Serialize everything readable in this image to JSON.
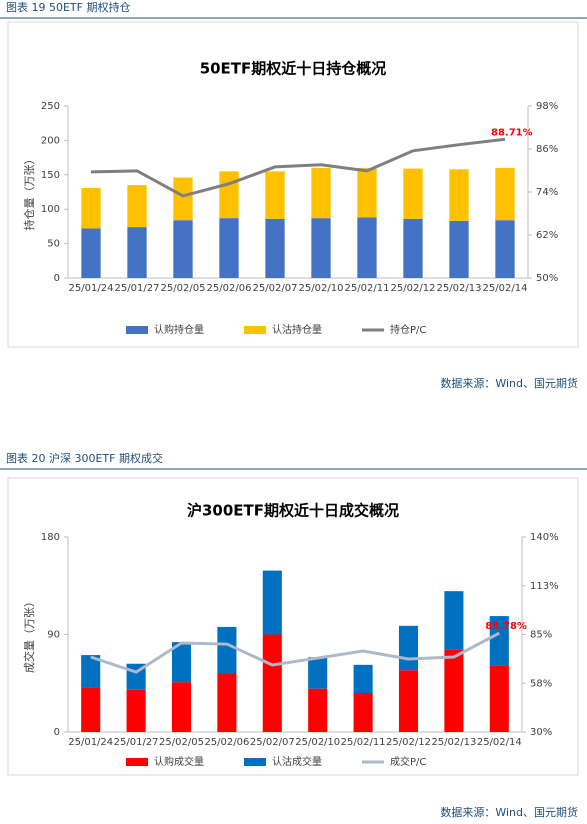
{
  "chart_data": [
    {
      "type": "bar",
      "caption": "图表 19  50ETF 期权持仓",
      "title": "50ETF期权近十日持仓概况",
      "y_label": "持仓量（万张）",
      "source": "数据来源：Wind、国元期货",
      "categories": [
        "25/01/24",
        "25/01/27",
        "25/02/05",
        "25/02/06",
        "25/02/07",
        "25/02/10",
        "25/02/11",
        "25/02/12",
        "25/02/13",
        "25/02/14"
      ],
      "series": [
        {
          "name": "认购持仓量",
          "color": "#4472c4",
          "values": [
            72,
            74,
            84,
            87,
            86,
            87,
            88,
            86,
            83,
            84
          ]
        },
        {
          "name": "认沽持仓量",
          "color": "#ffc000",
          "values": [
            59,
            61,
            62,
            68,
            69,
            73,
            72,
            73,
            75,
            76
          ]
        },
        {
          "name": "持仓P/C",
          "color": "#7f7f7f",
          "axis": "y2",
          "values": [
            79.6,
            79.9,
            72.9,
            76.3,
            81.0,
            81.6,
            79.9,
            85.5,
            87.2,
            88.71
          ],
          "value_labels": [
            null,
            null,
            null,
            null,
            null,
            null,
            null,
            null,
            null,
            "88.71%"
          ]
        }
      ],
      "ylim": [
        0,
        250
      ],
      "yticks": [
        0,
        50,
        100,
        150,
        200,
        250
      ],
      "y2lim": [
        50,
        98
      ],
      "y2ticks": [
        {
          "value": 50,
          "label": "50%"
        },
        {
          "value": 62,
          "label": "62%"
        },
        {
          "value": 74,
          "label": "74%"
        },
        {
          "value": 86,
          "label": "86%"
        },
        {
          "value": 98,
          "label": "98%"
        }
      ],
      "stacked": true,
      "grid": false
    },
    {
      "type": "bar",
      "caption": "图表 20  沪深 300ETF 期权成交",
      "title": "沪300ETF期权近十日成交概况",
      "y_label": "成交量（万张）",
      "source": "数据来源：Wind、国元期货",
      "categories": [
        "25/01/24",
        "25/01/27",
        "25/02/05",
        "25/02/06",
        "25/02/07",
        "25/02/10",
        "25/02/11",
        "25/02/12",
        "25/02/13",
        "25/02/14"
      ],
      "series": [
        {
          "name": "认购成交量",
          "color": "#ff0000",
          "values": [
            41,
            39,
            46,
            54,
            90,
            40,
            36,
            57,
            76,
            61
          ]
        },
        {
          "name": "认沽成交量",
          "color": "#0070c0",
          "values": [
            30,
            24,
            37,
            43,
            59,
            29,
            26,
            41,
            54,
            46
          ]
        },
        {
          "name": "成交P/C",
          "color": "#adb9ca",
          "axis": "y2",
          "values": [
            72.3,
            63.8,
            80.2,
            79.6,
            67.8,
            71.7,
            75.7,
            71.2,
            72.3,
            85.78
          ],
          "value_labels": [
            null,
            null,
            null,
            null,
            null,
            null,
            null,
            null,
            null,
            "85.78%"
          ]
        }
      ],
      "ylim": [
        0,
        180
      ],
      "yticks": [
        0,
        90,
        180
      ],
      "y2lim": [
        30,
        140
      ],
      "y2ticks": [
        {
          "value": 30,
          "label": "30%"
        },
        {
          "value": 57.5,
          "label": "58%"
        },
        {
          "value": 85,
          "label": "85%"
        },
        {
          "value": 112.5,
          "label": "113%"
        },
        {
          "value": 140,
          "label": "140%"
        }
      ],
      "stacked": true,
      "grid": false
    }
  ]
}
